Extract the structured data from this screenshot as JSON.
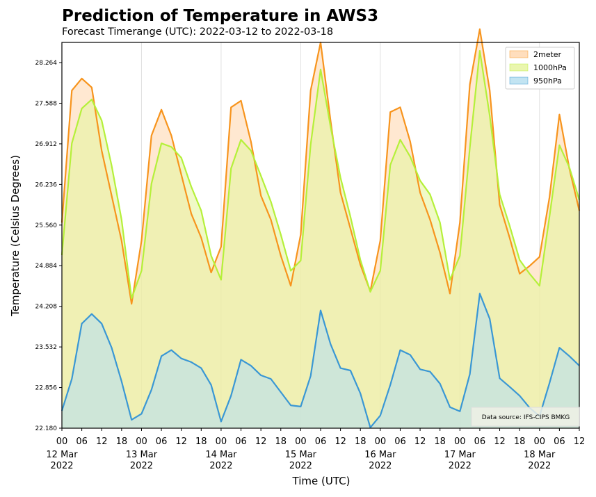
{
  "chart_data": {
    "type": "area",
    "title": "Prediction of Temperature in AWS3",
    "subtitle": "Forecast Timerange (UTC): 2022-03-12 to 2022-03-18",
    "xlabel": "Time (UTC)",
    "ylabel": "Temperature (Celsius Degrees)",
    "ylim": [
      22.18,
      28.6
    ],
    "y_ticks": [
      "22.180",
      "22.856",
      "23.532",
      "24.208",
      "24.884",
      "25.560",
      "26.236",
      "26.912",
      "27.588",
      "28.264"
    ],
    "x_hours": [
      0,
      3,
      6,
      9,
      12,
      15,
      18,
      21,
      24,
      27,
      30,
      33,
      36,
      39,
      42,
      45,
      48,
      51,
      54,
      57,
      60,
      63,
      66,
      69,
      72,
      75,
      78,
      81,
      84,
      87,
      90,
      93,
      96,
      99,
      102,
      105,
      108,
      111,
      114,
      117,
      120,
      123,
      126,
      129,
      132,
      135,
      138,
      141,
      144,
      147,
      150,
      153,
      156
    ],
    "x_ticks": [
      {
        "hour": 0,
        "label": "00",
        "date": "12 Mar",
        "year": "2022"
      },
      {
        "hour": 6,
        "label": "06"
      },
      {
        "hour": 12,
        "label": "12"
      },
      {
        "hour": 18,
        "label": "18"
      },
      {
        "hour": 24,
        "label": "00",
        "date": "13 Mar",
        "year": "2022"
      },
      {
        "hour": 30,
        "label": "06"
      },
      {
        "hour": 36,
        "label": "12"
      },
      {
        "hour": 42,
        "label": "18"
      },
      {
        "hour": 48,
        "label": "00",
        "date": "14 Mar",
        "year": "2022"
      },
      {
        "hour": 54,
        "label": "06"
      },
      {
        "hour": 60,
        "label": "12"
      },
      {
        "hour": 66,
        "label": "18"
      },
      {
        "hour": 72,
        "label": "00",
        "date": "15 Mar",
        "year": "2022"
      },
      {
        "hour": 78,
        "label": "06"
      },
      {
        "hour": 84,
        "label": "12"
      },
      {
        "hour": 90,
        "label": "18"
      },
      {
        "hour": 96,
        "label": "00",
        "date": "16 Mar",
        "year": "2022"
      },
      {
        "hour": 102,
        "label": "06"
      },
      {
        "hour": 108,
        "label": "12"
      },
      {
        "hour": 114,
        "label": "18"
      },
      {
        "hour": 120,
        "label": "00",
        "date": "17 Mar",
        "year": "2022"
      },
      {
        "hour": 126,
        "label": "06"
      },
      {
        "hour": 132,
        "label": "12"
      },
      {
        "hour": 138,
        "label": "18"
      },
      {
        "hour": 144,
        "label": "00",
        "date": "18 Mar",
        "year": "2022"
      },
      {
        "hour": 150,
        "label": "06"
      },
      {
        "hour": 156,
        "label": "12"
      }
    ],
    "series": [
      {
        "name": "2meter",
        "line_color": "#f7941d",
        "fill_color": "#ffd8b2",
        "values": [
          25.6,
          27.8,
          28.0,
          27.85,
          26.8,
          26.05,
          25.3,
          24.25,
          25.3,
          27.05,
          27.48,
          27.05,
          26.4,
          25.75,
          25.35,
          24.77,
          25.2,
          27.52,
          27.63,
          26.95,
          26.05,
          25.65,
          25.05,
          24.55,
          25.4,
          27.8,
          28.6,
          27.3,
          26.1,
          25.5,
          24.9,
          24.46,
          25.3,
          27.44,
          27.52,
          26.95,
          26.1,
          25.65,
          25.1,
          24.42,
          25.6,
          27.9,
          28.82,
          27.8,
          25.9,
          25.35,
          24.75,
          24.88,
          25.03,
          26.02,
          27.4,
          26.5,
          25.8
        ]
      },
      {
        "name": "1000hPa",
        "line_color": "#b5f03a",
        "fill_color": "#e6f5a0",
        "values": [
          25.06,
          26.92,
          27.5,
          27.65,
          27.3,
          26.55,
          25.65,
          24.34,
          24.8,
          26.25,
          26.92,
          26.86,
          26.68,
          26.2,
          25.8,
          25.05,
          24.65,
          26.5,
          26.98,
          26.8,
          26.38,
          25.95,
          25.4,
          24.8,
          24.97,
          26.9,
          28.15,
          27.2,
          26.35,
          25.7,
          24.98,
          24.45,
          24.8,
          26.56,
          26.98,
          26.7,
          26.3,
          26.07,
          25.6,
          24.65,
          25.05,
          26.85,
          28.46,
          27.38,
          26.07,
          25.55,
          24.98,
          24.75,
          24.55,
          25.7,
          26.89,
          26.52,
          25.98
        ]
      },
      {
        "name": "950hPa",
        "line_color": "#3a97d4",
        "fill_color": "#b7dff0",
        "values": [
          22.47,
          23.0,
          23.92,
          24.08,
          23.92,
          23.52,
          22.96,
          22.32,
          22.42,
          22.82,
          23.38,
          23.48,
          23.34,
          23.28,
          23.18,
          22.9,
          22.29,
          22.72,
          23.32,
          23.22,
          23.06,
          23.0,
          22.78,
          22.56,
          22.54,
          23.05,
          24.14,
          23.58,
          23.18,
          23.14,
          22.76,
          22.19,
          22.39,
          22.9,
          23.48,
          23.4,
          23.16,
          23.12,
          22.92,
          22.53,
          22.46,
          23.08,
          24.42,
          24.0,
          23.01,
          22.87,
          22.72,
          22.52,
          22.38,
          22.93,
          23.52,
          23.38,
          23.22
        ]
      }
    ],
    "legend": {
      "placement": "top-right"
    },
    "grid": "vertical",
    "annotation": "Data source: IFS-CIPS BMKG"
  }
}
